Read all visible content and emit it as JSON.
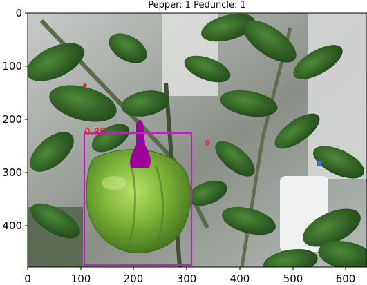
{
  "figure": {
    "title": "Pepper: 1 Peduncle: 1",
    "x_ticks": [
      "0",
      "100",
      "200",
      "300",
      "400",
      "500",
      "600"
    ],
    "y_ticks": [
      "0",
      "100",
      "200",
      "300",
      "400"
    ]
  },
  "detections": {
    "box_label": "0.89",
    "box_color": "#c020c0",
    "peduncle_color": "#a0009a",
    "centroid_color": "#2b2bff"
  }
}
